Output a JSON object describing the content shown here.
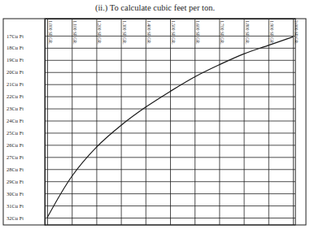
{
  "chart_data": {
    "type": "line",
    "title": "(ii.) To calculate cubic feet per ton.",
    "x": [
      1.0,
      1.1,
      1.2,
      1.3,
      1.4,
      1.5,
      1.6,
      1.7,
      1.8,
      1.9,
      2.0
    ],
    "values": [
      32.0,
      28.6,
      26.2,
      24.4,
      22.9,
      21.6,
      20.4,
      19.4,
      18.5,
      17.8,
      17.1
    ],
    "color": "#1a1a1a",
    "xlim": [
      0.99,
      2.01
    ],
    "ylim": [
      15.6,
      32.6
    ],
    "xticks": [
      {
        "value": 1.0,
        "label": "1.000 SP.GR."
      },
      {
        "value": 1.1,
        "label": "1.100 SP.GR."
      },
      {
        "value": 1.2,
        "label": "1.200 SP.GR."
      },
      {
        "value": 1.3,
        "label": "1.300 SP.GR."
      },
      {
        "value": 1.4,
        "label": "1.400 SP.GR."
      },
      {
        "value": 1.5,
        "label": "1.500 SP.GR."
      },
      {
        "value": 1.6,
        "label": "1.600 SP.GR."
      },
      {
        "value": 1.7,
        "label": "1.700 SP.GR."
      },
      {
        "value": 1.8,
        "label": "1.800 SP.GR."
      },
      {
        "value": 1.9,
        "label": "1.900 SP.GR."
      },
      {
        "value": 2.0,
        "label": "2.000 SP.GR."
      }
    ],
    "yticks": [
      {
        "value": 17,
        "label": "17Cu Ft"
      },
      {
        "value": 18,
        "label": "18Cu Ft"
      },
      {
        "value": 19,
        "label": "19Cu Ft"
      },
      {
        "value": 20,
        "label": "20Cu Ft"
      },
      {
        "value": 21,
        "label": "21Cu Ft"
      },
      {
        "value": 22,
        "label": "22Cu Ft"
      },
      {
        "value": 23,
        "label": "23Cu Ft"
      },
      {
        "value": 24,
        "label": "24Cu Ft"
      },
      {
        "value": 25,
        "label": "25Cu Ft"
      },
      {
        "value": 26,
        "label": "26Cu Ft"
      },
      {
        "value": 27,
        "label": "27Cu Ft"
      },
      {
        "value": 28,
        "label": "28Cu Ft"
      },
      {
        "value": 29,
        "label": "29Cu Ft"
      },
      {
        "value": 30,
        "label": "30Cu Ft"
      },
      {
        "value": 31,
        "label": "31Cu Ft"
      },
      {
        "value": 32,
        "label": "32Cu Ft"
      }
    ],
    "grid": true
  }
}
